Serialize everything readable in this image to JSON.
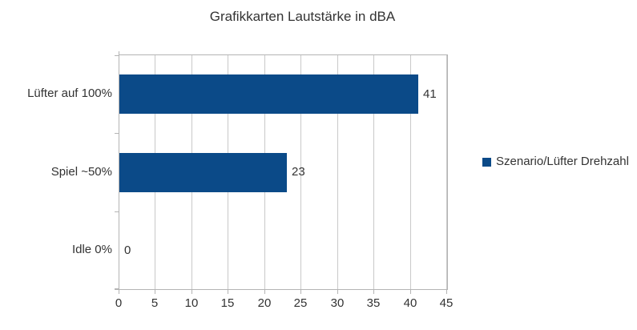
{
  "chart_data": {
    "type": "bar",
    "orientation": "horizontal",
    "title": "Grafikkarten Lautstärke in dBA",
    "categories": [
      "Lüfter auf 100%",
      "Spiel ~50%",
      "Idle 0%"
    ],
    "values": [
      41,
      23,
      0
    ],
    "value_labels": [
      "41",
      "23",
      "0"
    ],
    "series": [
      {
        "name": "Szenario/Lüfter Drehzahl",
        "values": [
          41,
          23,
          0
        ]
      }
    ],
    "x_ticks": [
      "0",
      "5",
      "10",
      "15",
      "20",
      "25",
      "30",
      "35",
      "40",
      "45"
    ],
    "xlim": [
      0,
      45
    ],
    "xlabel": "",
    "ylabel": "",
    "grid": "vertical",
    "legend_position": "right",
    "colors": {
      "bar": "#0b4a88",
      "gridline": "#c9c9c9",
      "axis": "#b4b4b4",
      "text": "#333333",
      "background": "#ffffff"
    }
  },
  "legend": {
    "label": "Szenario/Lüfter Drehzahl"
  }
}
